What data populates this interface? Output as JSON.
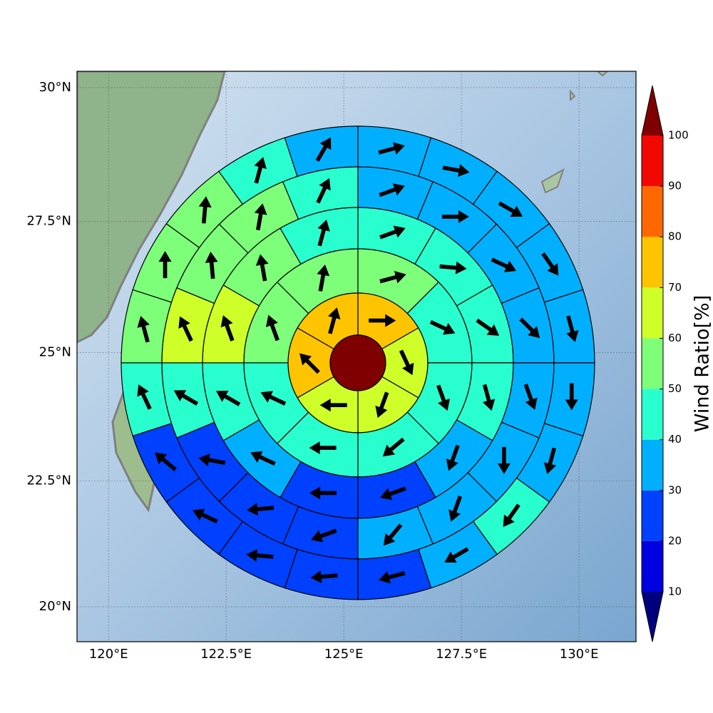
{
  "chart_data": {
    "type": "polar_sector_map",
    "xlim": [
      119.33,
      131.21
    ],
    "ylim": [
      19.3,
      30.3
    ],
    "xticks": [
      {
        "value": 120,
        "label": "120°E"
      },
      {
        "value": 122.5,
        "label": "122.5°E"
      },
      {
        "value": 125,
        "label": "125°E"
      },
      {
        "value": 127.5,
        "label": "127.5°E"
      },
      {
        "value": 130,
        "label": "130°E"
      }
    ],
    "yticks": [
      {
        "value": 20,
        "label": "20°N"
      },
      {
        "value": 22.5,
        "label": "22.5°N"
      },
      {
        "value": 25,
        "label": "25°N"
      },
      {
        "value": 27.5,
        "label": "27.5°N"
      },
      {
        "value": 30,
        "label": "30°N"
      }
    ],
    "grid": true,
    "center": {
      "lon": 125.3,
      "lat": 24.8,
      "value": 105
    },
    "rings": [
      {
        "values": [
          75,
          65,
          65,
          65,
          75,
          75
        ],
        "directions": [
          90,
          155,
          200,
          270,
          315,
          15
        ]
      },
      {
        "values": [
          55,
          45,
          45,
          45,
          45,
          45,
          55,
          55
        ],
        "directions": [
          75,
          115,
          160,
          230,
          270,
          295,
          340,
          10
        ]
      },
      {
        "values": [
          45,
          45,
          45,
          45,
          35,
          25,
          25,
          35,
          45,
          65,
          55,
          45
        ],
        "directions": [
          70,
          95,
          125,
          165,
          200,
          250,
          270,
          295,
          300,
          340,
          350,
          15
        ]
      },
      {
        "values": [
          35,
          35,
          35,
          35,
          35,
          35,
          35,
          35,
          25,
          25,
          25,
          45,
          65,
          55,
          55,
          45
        ],
        "directions": [
          70,
          90,
          115,
          135,
          160,
          180,
          200,
          220,
          250,
          265,
          280,
          300,
          335,
          355,
          10,
          25
        ]
      },
      {
        "values": [
          35,
          35,
          35,
          35,
          35,
          35,
          35,
          45,
          35,
          25,
          25,
          25,
          25,
          25,
          45,
          55,
          55,
          55,
          45,
          35
        ],
        "directions": [
          75,
          100,
          120,
          145,
          165,
          180,
          195,
          215,
          240,
          255,
          265,
          275,
          295,
          310,
          335,
          345,
          0,
          5,
          15,
          30
        ]
      }
    ],
    "colorbar": {
      "label": "Wind Ratio[%]",
      "ticks": [
        10,
        20,
        30,
        40,
        50,
        60,
        70,
        80,
        90,
        100
      ],
      "colors": [
        "#0000e0",
        "#0040ff",
        "#00b0ff",
        "#29ffce",
        "#7dff7a",
        "#ceff29",
        "#ffc400",
        "#ff6800",
        "#f10800"
      ],
      "under": "#00007f",
      "over": "#7f0000"
    }
  }
}
